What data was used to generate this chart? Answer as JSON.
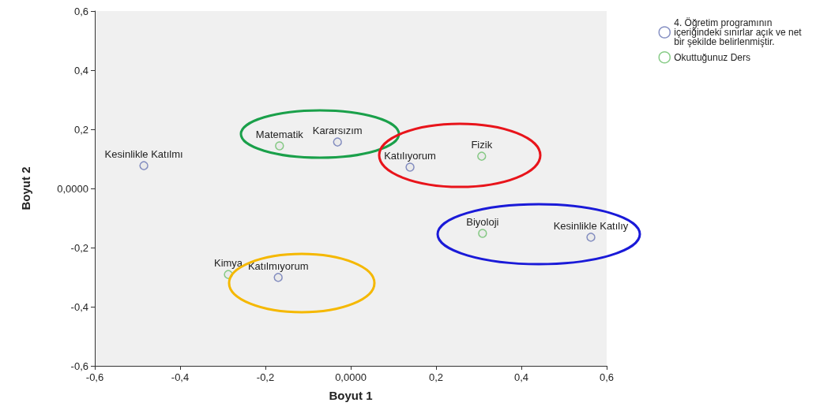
{
  "chart_data": {
    "type": "scatter",
    "xlabel": "Boyut 1",
    "ylabel": "Boyut 2",
    "xlim": [
      -0.6,
      0.6
    ],
    "ylim": [
      -0.6,
      0.6
    ],
    "xticks": [
      {
        "value": -0.6,
        "label": "-0,6"
      },
      {
        "value": -0.4,
        "label": "-0,4"
      },
      {
        "value": -0.2,
        "label": "-0,2"
      },
      {
        "value": 0,
        "label": "0,0000"
      },
      {
        "value": 0.2,
        "label": "0,2"
      },
      {
        "value": 0.4,
        "label": "0,4"
      },
      {
        "value": 0.6,
        "label": "0,6"
      }
    ],
    "yticks": [
      {
        "value": -0.6,
        "label": "-0,6"
      },
      {
        "value": -0.4,
        "label": "-0,4"
      },
      {
        "value": -0.2,
        "label": "-0,2"
      },
      {
        "value": 0,
        "label": "0,0000"
      },
      {
        "value": 0.2,
        "label": "0,2"
      },
      {
        "value": 0.4,
        "label": "0,4"
      },
      {
        "value": 0.6,
        "label": "0,6"
      }
    ],
    "series": [
      {
        "name": "4. Öğretim programının içeriğindeki sınırlar açık ve net bir şekilde belirlenmiştir.",
        "color": "#6874b4",
        "x": [
          -0.485,
          -0.031,
          0.139,
          0.563,
          -0.17
        ],
        "values": [
          0.077,
          0.157,
          0.072,
          -0.165,
          -0.301
        ]
      },
      {
        "name": "Okuttuğunuz Ders",
        "color": "#6abf69",
        "x": [
          -0.167,
          0.307,
          0.309,
          -0.287
        ],
        "values": [
          0.144,
          0.109,
          -0.152,
          -0.291
        ]
      }
    ],
    "annotations": [
      {
        "text": "Kesinlikle Katılmı",
        "x": -0.485,
        "y": 0.077
      },
      {
        "text": "Kararsızım",
        "x": -0.031,
        "y": 0.157
      },
      {
        "text": "Katılıyorum",
        "x": 0.139,
        "y": 0.072
      },
      {
        "text": "Kesinlikle Katılıy",
        "x": 0.563,
        "y": -0.165
      },
      {
        "text": "Katılmıyorum",
        "x": -0.17,
        "y": -0.301
      },
      {
        "text": "Matematik",
        "x": -0.167,
        "y": 0.144
      },
      {
        "text": "Fizik",
        "x": 0.307,
        "y": 0.109
      },
      {
        "text": "Biyoloji",
        "x": 0.309,
        "y": -0.152
      },
      {
        "text": "Kimya",
        "x": -0.287,
        "y": -0.291
      }
    ],
    "marker": "circle",
    "grid": false,
    "legend": "top right"
  }
}
